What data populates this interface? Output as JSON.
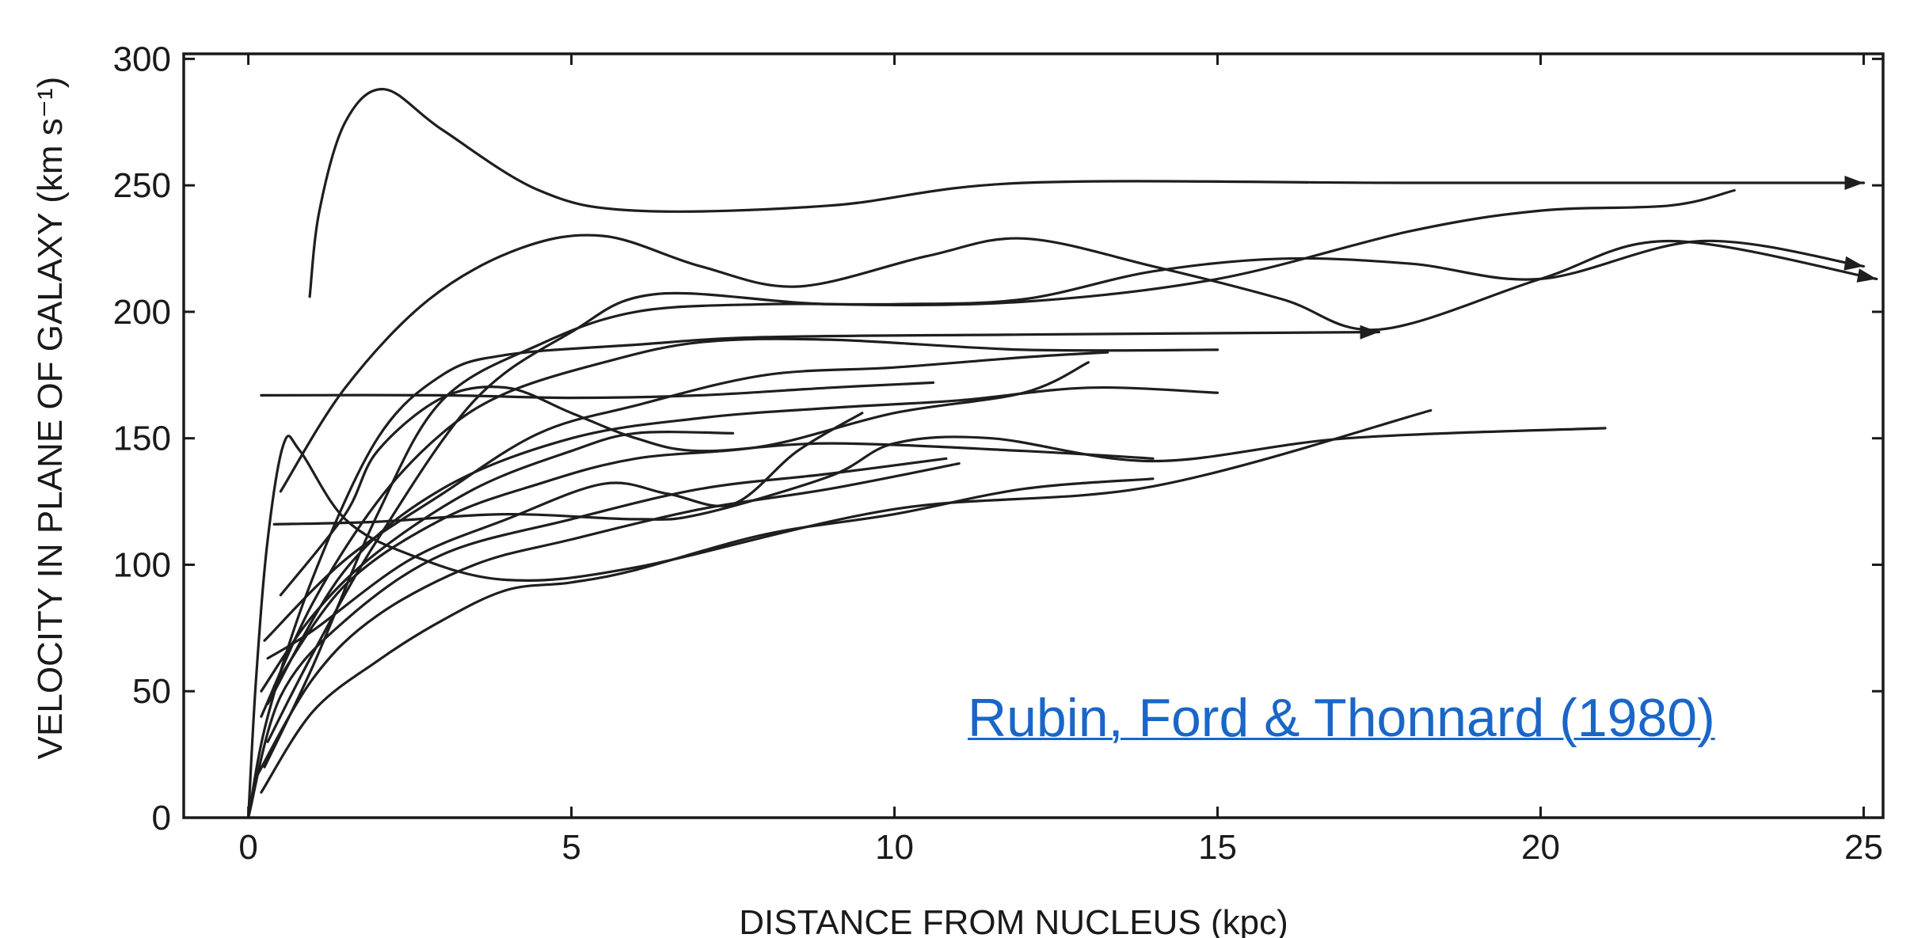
{
  "chart_data": {
    "type": "line",
    "xlabel": "DISTANCE FROM NUCLEUS (kpc)",
    "ylabel": "VELOCITY IN PLANE OF GALAXY (km s⁻¹)",
    "xlim": [
      -1,
      25.3
    ],
    "ylim": [
      0,
      302
    ],
    "x_ticks": [
      0,
      5,
      10,
      15,
      20,
      25
    ],
    "y_ticks": [
      0,
      50,
      100,
      150,
      200,
      250,
      300
    ],
    "grid": false,
    "annotations": [
      {
        "text": "Rubin, Ford & Thonnard (1980)",
        "kind": "citation-link"
      }
    ],
    "series": [
      {
        "arrow": true,
        "points": [
          [
            0.95,
            206
          ],
          [
            1.1,
            240
          ],
          [
            1.5,
            275
          ],
          [
            2.1,
            288
          ],
          [
            3,
            272
          ],
          [
            4.5,
            248
          ],
          [
            6,
            240
          ],
          [
            9,
            242
          ],
          [
            12,
            251
          ],
          [
            18,
            251
          ],
          [
            25,
            251
          ]
        ]
      },
      {
        "arrow": false,
        "points": [
          [
            0,
            0
          ],
          [
            0.12,
            55
          ],
          [
            0.3,
            110
          ],
          [
            0.55,
            148
          ],
          [
            0.8,
            145
          ],
          [
            1.5,
            118
          ],
          [
            2.5,
            104
          ],
          [
            4,
            94
          ],
          [
            6,
            99
          ],
          [
            10,
            122
          ],
          [
            14,
            131
          ],
          [
            18.3,
            161
          ]
        ]
      },
      {
        "arrow": false,
        "points": [
          [
            0.2,
            167
          ],
          [
            3,
            167
          ],
          [
            5,
            166
          ],
          [
            7,
            167
          ],
          [
            9,
            170
          ],
          [
            10.6,
            172
          ]
        ]
      },
      {
        "arrow": false,
        "points": [
          [
            0.4,
            116
          ],
          [
            2,
            117
          ],
          [
            4,
            120
          ],
          [
            6,
            118
          ],
          [
            7,
            120
          ],
          [
            9,
            135
          ],
          [
            10,
            148
          ],
          [
            11.5,
            150
          ],
          [
            14,
            141
          ],
          [
            17,
            150
          ],
          [
            21,
            154
          ]
        ]
      },
      {
        "arrow": true,
        "points": [
          [
            0.5,
            129
          ],
          [
            1.5,
            170
          ],
          [
            2.8,
            205
          ],
          [
            4.2,
            225
          ],
          [
            5.5,
            230
          ],
          [
            7,
            218
          ],
          [
            8.5,
            210
          ],
          [
            10.5,
            222
          ],
          [
            12,
            229
          ],
          [
            14,
            218
          ],
          [
            16,
            205
          ],
          [
            17.5,
            193
          ],
          [
            20,
            213
          ],
          [
            22,
            228
          ],
          [
            25.2,
            213
          ]
        ]
      },
      {
        "arrow": true,
        "points": [
          [
            0.25,
            20
          ],
          [
            1,
            60
          ],
          [
            2,
            120
          ],
          [
            3,
            165
          ],
          [
            4.5,
            187
          ],
          [
            6,
            200
          ],
          [
            8,
            203
          ],
          [
            10,
            203
          ],
          [
            12,
            205
          ],
          [
            14,
            216
          ],
          [
            16,
            221
          ],
          [
            18,
            219
          ],
          [
            20,
            213
          ],
          [
            22.5,
            228
          ],
          [
            25,
            218
          ]
        ]
      },
      {
        "arrow": false,
        "points": [
          [
            0.3,
            30
          ],
          [
            1,
            65
          ],
          [
            2,
            110
          ],
          [
            3.5,
            165
          ],
          [
            5,
            192
          ],
          [
            6.3,
            207
          ],
          [
            9,
            203
          ],
          [
            12,
            204
          ],
          [
            15,
            213
          ],
          [
            18,
            232
          ],
          [
            20,
            240
          ],
          [
            22,
            242
          ],
          [
            23,
            248
          ]
        ]
      },
      {
        "arrow": false,
        "points": [
          [
            0.2,
            40
          ],
          [
            1,
            85
          ],
          [
            2,
            125
          ],
          [
            3,
            152
          ],
          [
            4,
            168
          ],
          [
            5.5,
            180
          ],
          [
            7,
            188
          ],
          [
            9,
            189
          ],
          [
            12,
            185
          ],
          [
            15,
            185
          ]
        ]
      },
      {
        "arrow": true,
        "points": [
          [
            0,
            0
          ],
          [
            0.3,
            40
          ],
          [
            1,
            95
          ],
          [
            2,
            150
          ],
          [
            3,
            175
          ],
          [
            4,
            183
          ],
          [
            6,
            187
          ],
          [
            8,
            190
          ],
          [
            12,
            191
          ],
          [
            17.5,
            192
          ]
        ]
      },
      {
        "arrow": false,
        "points": [
          [
            0.4,
            52
          ],
          [
            1.5,
            92
          ],
          [
            3,
            118
          ],
          [
            4.5,
            132
          ],
          [
            6,
            142
          ],
          [
            8,
            147
          ],
          [
            10,
            160
          ],
          [
            12,
            168
          ],
          [
            13,
            180
          ]
        ]
      },
      {
        "arrow": false,
        "points": [
          [
            0.3,
            45
          ],
          [
            1.5,
            98
          ],
          [
            3,
            130
          ],
          [
            5,
            150
          ],
          [
            7,
            158
          ],
          [
            9,
            162
          ],
          [
            11,
            165
          ],
          [
            13,
            170
          ],
          [
            15,
            168
          ]
        ]
      },
      {
        "arrow": false,
        "points": [
          [
            0.2,
            50
          ],
          [
            1,
            80
          ],
          [
            2,
            105
          ],
          [
            3.5,
            130
          ],
          [
            5,
            145
          ],
          [
            6,
            152
          ],
          [
            7.5,
            152
          ]
        ]
      },
      {
        "arrow": false,
        "points": [
          [
            0.1,
            15
          ],
          [
            1,
            55
          ],
          [
            2,
            80
          ],
          [
            3.5,
            100
          ],
          [
            5,
            110
          ],
          [
            7,
            122
          ],
          [
            9,
            130
          ],
          [
            11,
            140
          ]
        ]
      },
      {
        "arrow": false,
        "points": [
          [
            0.2,
            10
          ],
          [
            1,
            42
          ],
          [
            2,
            62
          ],
          [
            3,
            78
          ],
          [
            4,
            90
          ],
          [
            5,
            93
          ],
          [
            6,
            98
          ],
          [
            8,
            112
          ],
          [
            10,
            120
          ],
          [
            12,
            130
          ],
          [
            14,
            134
          ]
        ]
      },
      {
        "arrow": false,
        "points": [
          [
            0.5,
            88
          ],
          [
            1.5,
            120
          ],
          [
            2,
            145
          ],
          [
            3,
            166
          ],
          [
            4,
            170
          ],
          [
            5,
            160
          ],
          [
            6,
            150
          ],
          [
            7,
            145
          ],
          [
            9,
            148
          ],
          [
            12,
            145
          ],
          [
            14,
            142
          ]
        ]
      },
      {
        "arrow": false,
        "points": [
          [
            0.3,
            63
          ],
          [
            1,
            74
          ],
          [
            2.5,
            102
          ],
          [
            4,
            118
          ],
          [
            5.5,
            132
          ],
          [
            6.5,
            128
          ],
          [
            7.5,
            124
          ],
          [
            8.5,
            145
          ],
          [
            9.5,
            160
          ]
        ]
      },
      {
        "arrow": false,
        "points": [
          [
            0.25,
            70
          ],
          [
            1.5,
            102
          ],
          [
            3,
            128
          ],
          [
            4.5,
            152
          ],
          [
            6,
            163
          ],
          [
            8,
            175
          ],
          [
            10,
            178
          ],
          [
            12,
            182
          ],
          [
            13.3,
            184
          ]
        ]
      },
      {
        "arrow": false,
        "points": [
          [
            0,
            0
          ],
          [
            0.5,
            48
          ],
          [
            1.5,
            78
          ],
          [
            3,
            104
          ],
          [
            5,
            118
          ],
          [
            7,
            130
          ],
          [
            9,
            136
          ],
          [
            10.8,
            142
          ]
        ]
      }
    ]
  }
}
